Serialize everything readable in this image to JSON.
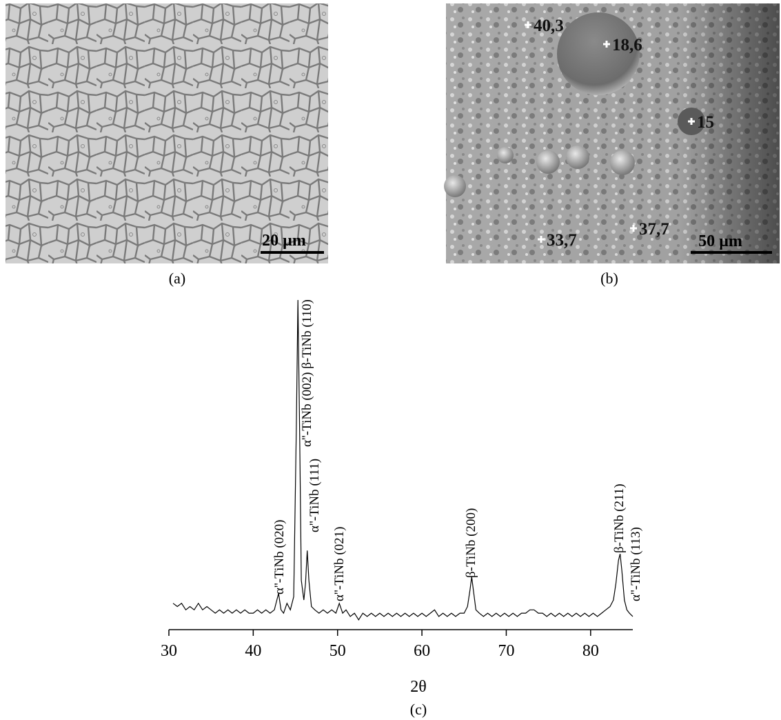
{
  "panels": [
    {
      "label": "(a)",
      "scale_bar": "20 µm"
    },
    {
      "label": "(b)",
      "scale_bar": "50 µm",
      "points": [
        "40,3",
        "18,6",
        "15",
        "33,7",
        "37,7"
      ]
    }
  ],
  "chart_data": {
    "type": "line",
    "panel_label": "(c)",
    "x_label": "2θ",
    "color": "#000000",
    "xlim": [
      30,
      85
    ],
    "ylim": [
      0,
      100
    ],
    "xticks": [
      30,
      40,
      50,
      60,
      70,
      80
    ],
    "annotations": [
      "α''-TiNb (020)",
      "α''-TiNb (002) β-TiNb (110)",
      "α''-TiNb (111)",
      "α''-TiNb (021)",
      "β-TiNb (200)",
      "β-TiNb (211)",
      "α''-TiNb (113)"
    ],
    "x": [
      30.5,
      31,
      31.5,
      32,
      32.5,
      33,
      33.5,
      34,
      34.5,
      35,
      35.5,
      36,
      36.5,
      37,
      37.5,
      38,
      38.5,
      39,
      39.5,
      40,
      40.5,
      41,
      41.5,
      42,
      42.5,
      43,
      43.3,
      43.6,
      44,
      44.4,
      44.8,
      45.1,
      45.3,
      45.5,
      45.7,
      46,
      46.2,
      46.4,
      46.6,
      46.9,
      47.3,
      47.8,
      48.3,
      48.8,
      49.3,
      49.8,
      50.2,
      50.6,
      51,
      51.5,
      52,
      52.5,
      53,
      53.5,
      54,
      54.5,
      55,
      55.5,
      56,
      56.5,
      57,
      57.5,
      58,
      58.5,
      59,
      59.5,
      60,
      60.5,
      61,
      61.5,
      62,
      62.5,
      63,
      63.5,
      64,
      64.5,
      65,
      65.4,
      65.7,
      65.9,
      66.1,
      66.4,
      66.8,
      67.3,
      67.8,
      68.3,
      68.8,
      69.3,
      69.8,
      70.3,
      70.8,
      71.3,
      71.8,
      72.3,
      72.8,
      73.3,
      73.8,
      74.3,
      74.8,
      75.3,
      75.8,
      76.3,
      76.8,
      77.3,
      77.8,
      78.3,
      78.8,
      79.3,
      79.8,
      80.3,
      80.8,
      81.3,
      81.8,
      82.3,
      82.7,
      83,
      83.3,
      83.5,
      83.7,
      84,
      84.3,
      84.6,
      85
    ],
    "values": [
      8,
      7,
      8,
      6,
      7,
      6,
      8,
      6,
      7,
      6,
      5,
      6,
      5,
      6,
      5,
      6,
      5,
      6,
      5,
      5,
      6,
      5,
      6,
      5,
      6,
      11,
      6,
      5,
      8,
      6,
      10,
      60,
      100,
      60,
      15,
      9,
      14,
      24,
      15,
      7,
      6,
      5,
      6,
      5,
      6,
      5,
      8,
      5,
      6,
      4,
      5,
      3,
      5,
      4,
      5,
      4,
      5,
      4,
      5,
      4,
      5,
      4,
      5,
      4,
      5,
      4,
      5,
      4,
      5,
      6,
      4,
      5,
      4,
      5,
      4,
      5,
      5,
      7,
      12,
      16,
      12,
      6,
      5,
      4,
      5,
      4,
      5,
      4,
      5,
      4,
      5,
      4,
      5,
      5,
      6,
      6,
      5,
      5,
      4,
      5,
      4,
      5,
      4,
      5,
      4,
      5,
      4,
      5,
      4,
      5,
      4,
      5,
      6,
      7,
      9,
      14,
      21,
      23,
      18,
      9,
      6,
      5,
      4
    ]
  }
}
